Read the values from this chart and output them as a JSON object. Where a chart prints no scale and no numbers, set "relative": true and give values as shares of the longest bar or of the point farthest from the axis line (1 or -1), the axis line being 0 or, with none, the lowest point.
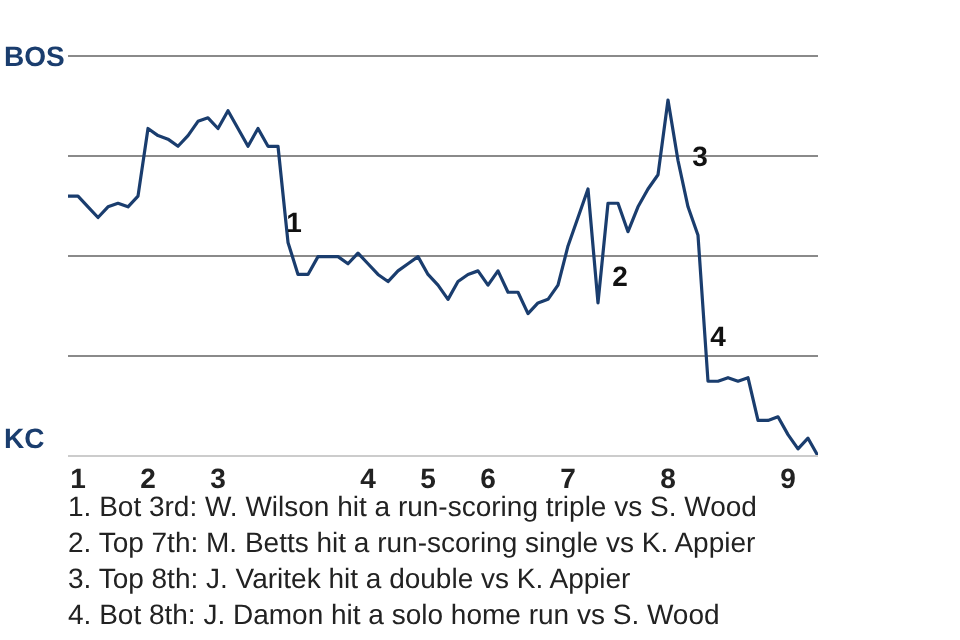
{
  "chart_data": {
    "type": "line",
    "relative": true,
    "categories": [
      null,
      "1",
      null,
      null,
      null,
      null,
      null,
      null,
      "2",
      null,
      null,
      null,
      null,
      null,
      null,
      "3",
      null,
      null,
      null,
      null,
      null,
      null,
      null,
      null,
      null,
      null,
      null,
      null,
      null,
      null,
      "4",
      null,
      null,
      null,
      null,
      null,
      "5",
      null,
      null,
      null,
      null,
      null,
      "6",
      null,
      null,
      null,
      null,
      null,
      null,
      null,
      "7",
      null,
      null,
      null,
      null,
      null,
      null,
      null,
      null,
      null,
      "8",
      null,
      null,
      null,
      null,
      null,
      null,
      null,
      null,
      null,
      null,
      null,
      "9",
      null,
      null,
      null
    ],
    "series": [
      {
        "color": "#1a3d6e",
        "values": [
          0.73,
          0.73,
          0.7,
          0.67,
          0.7,
          0.71,
          0.7,
          0.73,
          0.92,
          0.9,
          0.89,
          0.87,
          0.9,
          0.94,
          0.95,
          0.92,
          0.97,
          0.92,
          0.87,
          0.92,
          0.87,
          0.87,
          0.6,
          0.51,
          0.51,
          0.56,
          0.56,
          0.56,
          0.54,
          0.57,
          0.54,
          0.51,
          0.49,
          0.52,
          0.54,
          0.56,
          0.51,
          0.48,
          0.44,
          0.49,
          0.51,
          0.52,
          0.48,
          0.52,
          0.46,
          0.46,
          0.4,
          0.43,
          0.44,
          0.48,
          0.59,
          0.67,
          0.75,
          0.43,
          0.71,
          0.71,
          0.63,
          0.7,
          0.75,
          0.79,
          1,
          0.83,
          0.7,
          0.62,
          0.21,
          0.21,
          0.22,
          0.21,
          0.22,
          0.1,
          0.1,
          0.11,
          0.06,
          0.02,
          0.05,
          0
        ]
      }
    ],
    "grid": "y",
    "annotations": [
      "BOS",
      "KC",
      "1",
      "2",
      "3",
      "4",
      "1. Bot 3rd: W. Wilson hit a run-scoring triple vs S. Wood",
      "2. Top 7th: M. Betts hit a run-scoring single vs K. Appier",
      "3. Top 8th: J. Varitek hit a double vs K. Appier",
      "4. Bot 8th: J. Damon hit a solo home run vs S. Wood"
    ]
  }
}
